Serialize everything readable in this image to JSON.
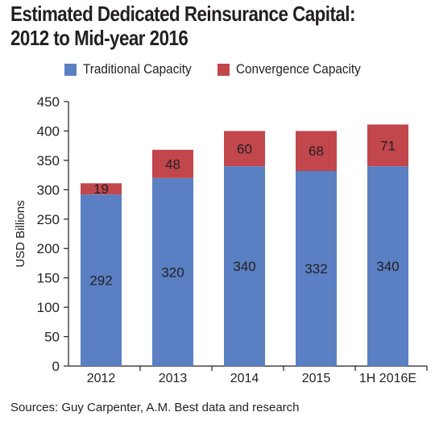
{
  "title_line1": "Estimated Dedicated Reinsurance Capital:",
  "title_line2": "2012 to Mid-year 2016",
  "source": "Sources: Guy Carpenter, A.M. Best data and research",
  "colors": {
    "traditional": "#5a7fc3",
    "convergence": "#c1474c"
  },
  "chart_data": {
    "type": "bar",
    "stacked": true,
    "categories": [
      "2012",
      "2013",
      "2014",
      "2015",
      "1H 2016E"
    ],
    "series": [
      {
        "name": "Traditional Capacity",
        "values": [
          292,
          320,
          340,
          332,
          340
        ],
        "color": "#5a7fc3"
      },
      {
        "name": "Convergence Capacity",
        "values": [
          19,
          48,
          60,
          68,
          71
        ],
        "color": "#c1474c"
      }
    ],
    "data_labels": {
      "traditional": [
        "292",
        "320",
        "340",
        "332",
        "340"
      ],
      "convergence": [
        "19",
        "48",
        "60",
        "68",
        "71"
      ]
    },
    "ylabel": "USD Billions",
    "xlabel": "",
    "ylim": [
      0,
      450
    ],
    "yticks": [
      "0",
      "50",
      "100",
      "150",
      "200",
      "250",
      "300",
      "350",
      "400",
      "450"
    ],
    "grid": false,
    "legend": "top"
  }
}
